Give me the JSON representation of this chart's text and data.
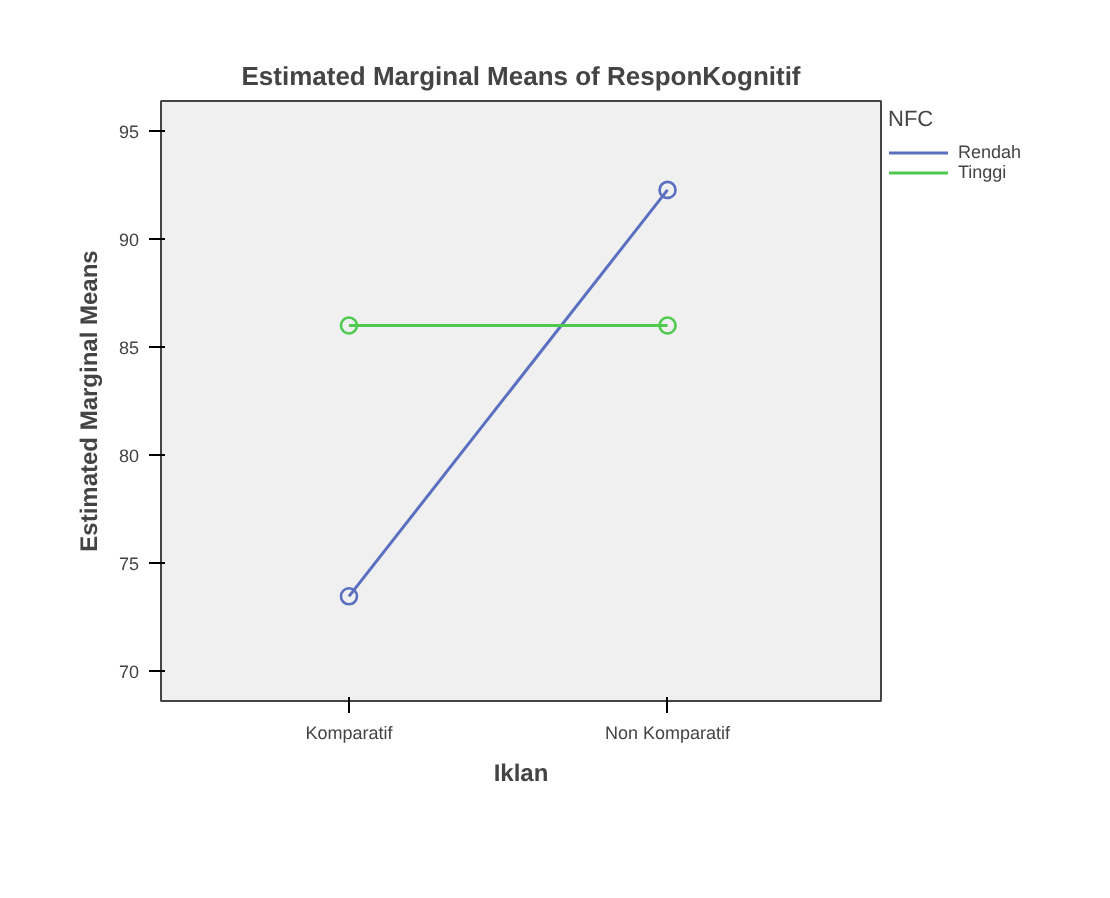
{
  "chart_data": {
    "type": "line",
    "title": "Estimated Marginal Means of ResponKognitif",
    "xlabel": "Iklan",
    "ylabel": "Estimated Marginal Means",
    "legend_title": "NFC",
    "categories": [
      "Komparatif",
      "Non Komparatif"
    ],
    "series": [
      {
        "name": "Rendah",
        "color": "#5a6fc0",
        "values": [
          73.45,
          92.28
        ]
      },
      {
        "name": "Tinggi",
        "color": "#4fc94f",
        "values": [
          86.0,
          86.0
        ]
      }
    ],
    "ylim": [
      68.6,
      96.4
    ],
    "yticks": [
      70,
      75,
      80,
      85,
      90,
      95
    ],
    "grid": false,
    "legend": "right",
    "marker": "circle",
    "line_style": "solid"
  }
}
